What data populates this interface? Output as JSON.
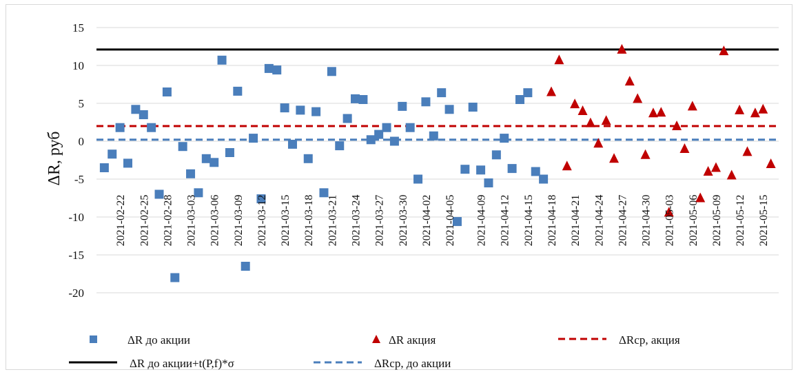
{
  "chart_data": {
    "type": "scatter",
    "ylabel": "ΔR, руб",
    "ylim": [
      -20,
      15
    ],
    "yticks": [
      15,
      10,
      5,
      0,
      -5,
      -10,
      -15,
      -20
    ],
    "xlim": [
      "2021-02-19",
      "2021-05-17"
    ],
    "xtick_labels": [
      "2021-02-22",
      "2021-02-25",
      "2021-02-28",
      "2021-03-03",
      "2021-03-06",
      "2021-03-09",
      "2021-03-12",
      "2021-03-15",
      "2021-03-18",
      "2021-03-21",
      "2021-03-24",
      "2021-03-27",
      "2021-03-30",
      "2021-04-02",
      "2021-04-05",
      "2021-04-09",
      "2021-04-12",
      "2021-04-15",
      "2021-04-18",
      "2021-04-21",
      "2021-04-24",
      "2021-04-27",
      "2021-04-30",
      "2021-05-03",
      "2021-05-06",
      "2021-05-09",
      "2021-05-12",
      "2021-05-15"
    ],
    "grid": "horizontal",
    "legend_position": "bottom",
    "colors": {
      "before": "#4a7ebb",
      "promo": "#c00000",
      "threshold": "#000000",
      "mean_promo": "#c00000",
      "mean_before": "#4a7ebb"
    },
    "series": [
      {
        "name": "ΔR до акции",
        "kind": "scatter",
        "marker": "square",
        "x": [
          "2021-02-20",
          "2021-02-21",
          "2021-02-22",
          "2021-02-23",
          "2021-02-24",
          "2021-02-25",
          "2021-02-26",
          "2021-02-27",
          "2021-02-28",
          "2021-03-01",
          "2021-03-02",
          "2021-03-03",
          "2021-03-04",
          "2021-03-05",
          "2021-03-06",
          "2021-03-07",
          "2021-03-08",
          "2021-03-09",
          "2021-03-10",
          "2021-03-11",
          "2021-03-12",
          "2021-03-13",
          "2021-03-14",
          "2021-03-15",
          "2021-03-16",
          "2021-03-17",
          "2021-03-18",
          "2021-03-19",
          "2021-03-20",
          "2021-03-21",
          "2021-03-22",
          "2021-03-23",
          "2021-03-24",
          "2021-03-25",
          "2021-03-26",
          "2021-03-27",
          "2021-03-28",
          "2021-03-29",
          "2021-03-30",
          "2021-03-31",
          "2021-04-01",
          "2021-04-02",
          "2021-04-03",
          "2021-04-04",
          "2021-04-05",
          "2021-04-06",
          "2021-04-07",
          "2021-04-08",
          "2021-04-09",
          "2021-04-10",
          "2021-04-11",
          "2021-04-12",
          "2021-04-13",
          "2021-04-14",
          "2021-04-15",
          "2021-04-16",
          "2021-04-17"
        ],
        "y": [
          -3.5,
          -1.7,
          1.8,
          -2.9,
          4.2,
          3.5,
          1.8,
          -7.0,
          6.5,
          -18.0,
          -0.7,
          -4.3,
          -6.8,
          -2.3,
          -2.8,
          10.7,
          -1.5,
          6.6,
          -16.5,
          0.4,
          -7.6,
          9.6,
          9.4,
          4.4,
          -0.4,
          4.1,
          -2.3,
          3.9,
          -6.8,
          9.2,
          -0.6,
          3.0,
          5.6,
          5.5,
          0.2,
          0.9,
          1.8,
          0.0,
          4.6,
          1.8,
          -5.0,
          5.2,
          0.7,
          6.4,
          4.2,
          -10.6,
          -3.7,
          4.5,
          -3.8,
          -5.5,
          -1.8,
          0.4,
          -3.6,
          5.5,
          6.4,
          -4.0,
          -5.0
        ]
      },
      {
        "name": "ΔR акция",
        "kind": "scatter",
        "marker": "triangle",
        "x": [
          "2021-04-18",
          "2021-04-19",
          "2021-04-20",
          "2021-04-21",
          "2021-04-22",
          "2021-04-23",
          "2021-04-24",
          "2021-04-25",
          "2021-04-26",
          "2021-04-27",
          "2021-04-28",
          "2021-04-29",
          "2021-04-30",
          "2021-05-01",
          "2021-05-02",
          "2021-05-03",
          "2021-05-04",
          "2021-05-05",
          "2021-05-06",
          "2021-05-07",
          "2021-05-08",
          "2021-05-09",
          "2021-05-10",
          "2021-05-11",
          "2021-05-12",
          "2021-05-13",
          "2021-05-14",
          "2021-05-15",
          "2021-05-16"
        ],
        "y": [
          6.5,
          10.7,
          -3.3,
          4.9,
          4.0,
          2.4,
          -0.3,
          2.7,
          -2.3,
          12.1,
          7.9,
          5.6,
          -1.8,
          3.7,
          3.8,
          -9.4,
          2.0,
          -1.0,
          4.6,
          -7.5,
          -4.0,
          -3.5,
          11.9,
          -4.5,
          4.1,
          -1.4,
          3.7,
          4.2,
          -3.0
        ]
      },
      {
        "name": "ΔRср,  акция",
        "kind": "hline",
        "style": "dashed",
        "y": 2.0
      },
      {
        "name": "ΔR до акции+t(P,f)*σ",
        "kind": "hline",
        "style": "solid",
        "y": 12.1
      },
      {
        "name": "ΔRср, до акции",
        "kind": "hline",
        "style": "dashed",
        "y": 0.2
      }
    ]
  }
}
